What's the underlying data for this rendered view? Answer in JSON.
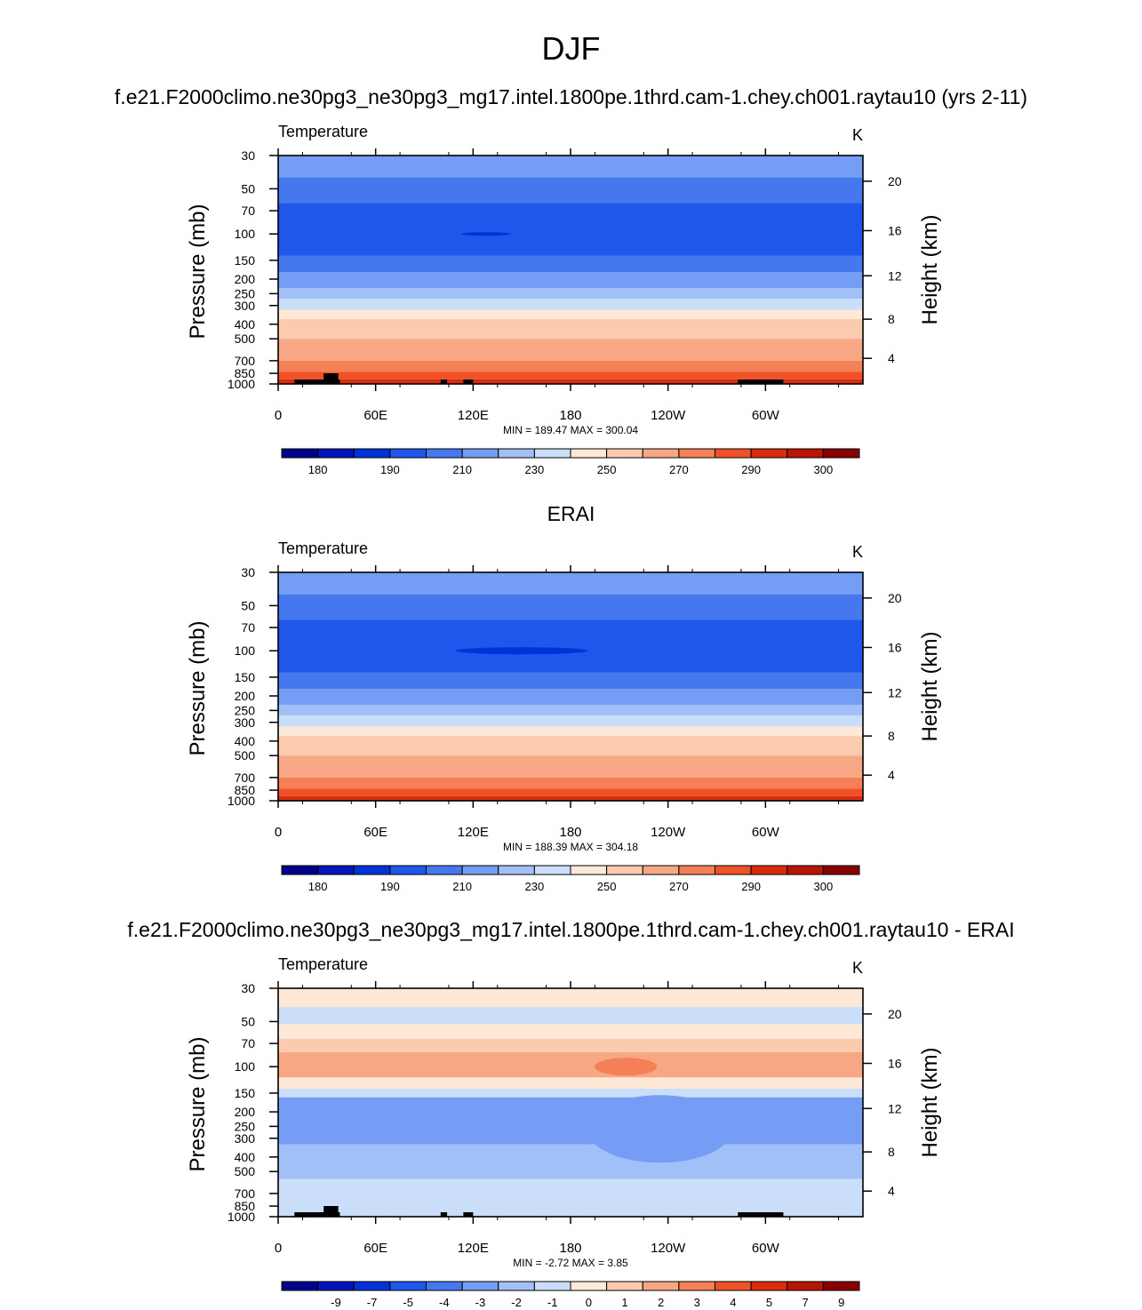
{
  "figure": {
    "title": "DJF",
    "panel_titles": [
      "f.e21.F2000climo.ne30pg3_ne30pg3_mg17.intel.1800pe.1thrd.cam-1.chey.ch001.raytau10 (yrs 2-11)",
      "ERAI",
      "f.e21.F2000climo.ne30pg3_ne30pg3_mg17.intel.1800pe.1thrd.cam-1.chey.ch001.raytau10 - ERAI"
    ]
  },
  "chart_data": [
    {
      "type": "heatmap",
      "variable": "Temperature",
      "units": "K",
      "ylabel": "Pressure (mb)",
      "ylabel_right": "Height (km)",
      "x_ticks": [
        "0",
        "60E",
        "120E",
        "180",
        "120W",
        "60W"
      ],
      "y_ticks": [
        30,
        50,
        70,
        100,
        150,
        200,
        250,
        300,
        400,
        500,
        700,
        850,
        1000
      ],
      "y_ticks_right": [
        20,
        16,
        12,
        8,
        4
      ],
      "y_scale": "log",
      "stats": "MIN = 189.47  MAX = 300.04",
      "colorbar_labels": [
        "180",
        "190",
        "210",
        "230",
        "250",
        "270",
        "290",
        "300"
      ],
      "layers": [
        {
          "p": 30,
          "value": 210
        },
        {
          "p": 42,
          "value": 200
        },
        {
          "p": 62,
          "value": 190
        },
        {
          "p": 140,
          "value": 200
        },
        {
          "p": 180,
          "value": 210
        },
        {
          "p": 230,
          "value": 220
        },
        {
          "p": 270,
          "value": 230
        },
        {
          "p": 320,
          "value": 240
        },
        {
          "p": 370,
          "value": 250
        },
        {
          "p": 430,
          "value": 255
        },
        {
          "p": 500,
          "value": 260
        },
        {
          "p": 600,
          "value": 265
        },
        {
          "p": 700,
          "value": 270
        },
        {
          "p": 830,
          "value": 280
        },
        {
          "p": 930,
          "value": 290
        },
        {
          "p": 990,
          "value": 300
        }
      ]
    },
    {
      "type": "heatmap",
      "variable": "Temperature",
      "units": "K",
      "ylabel": "Pressure (mb)",
      "ylabel_right": "Height (km)",
      "x_ticks": [
        "0",
        "60E",
        "120E",
        "180",
        "120W",
        "60W"
      ],
      "y_ticks": [
        30,
        50,
        70,
        100,
        150,
        200,
        250,
        300,
        400,
        500,
        700,
        850,
        1000
      ],
      "y_ticks_right": [
        20,
        16,
        12,
        8,
        4
      ],
      "y_scale": "log",
      "stats": "MIN = 188.39  MAX = 304.18",
      "colorbar_labels": [
        "180",
        "190",
        "210",
        "230",
        "250",
        "270",
        "290",
        "300"
      ],
      "layers": [
        {
          "p": 30,
          "value": 210
        },
        {
          "p": 42,
          "value": 200
        },
        {
          "p": 62,
          "value": 190
        },
        {
          "p": 140,
          "value": 200
        },
        {
          "p": 180,
          "value": 210
        },
        {
          "p": 230,
          "value": 220
        },
        {
          "p": 270,
          "value": 230
        },
        {
          "p": 320,
          "value": 240
        },
        {
          "p": 370,
          "value": 250
        },
        {
          "p": 430,
          "value": 255
        },
        {
          "p": 500,
          "value": 260
        },
        {
          "p": 600,
          "value": 265
        },
        {
          "p": 700,
          "value": 270
        },
        {
          "p": 830,
          "value": 280
        },
        {
          "p": 930,
          "value": 290
        },
        {
          "p": 985,
          "value": 300
        }
      ]
    },
    {
      "type": "heatmap",
      "variable": "Temperature",
      "units": "K",
      "ylabel": "Pressure (mb)",
      "ylabel_right": "Height (km)",
      "x_ticks": [
        "0",
        "60E",
        "120E",
        "180",
        "120W",
        "60W"
      ],
      "y_ticks": [
        30,
        50,
        70,
        100,
        150,
        200,
        250,
        300,
        400,
        500,
        700,
        850,
        1000
      ],
      "y_ticks_right": [
        20,
        16,
        12,
        8,
        4
      ],
      "y_scale": "log",
      "stats": "MIN =  -2.72  MAX =   3.85",
      "colorbar_labels": [
        "-9",
        "-7",
        "-5",
        "-4",
        "-3",
        "-2",
        "-1",
        "0",
        "1",
        "2",
        "3",
        "4",
        "5",
        "7",
        "9"
      ],
      "layers": [
        {
          "p": 30,
          "value": 0.5
        },
        {
          "p": 40,
          "value": -0.5
        },
        {
          "p": 52,
          "value": 0.5
        },
        {
          "p": 65,
          "value": 1.5
        },
        {
          "p": 80,
          "value": 2.5
        },
        {
          "p": 118,
          "value": 0.5
        },
        {
          "p": 140,
          "value": -0.5
        },
        {
          "p": 160,
          "value": -2.5
        },
        {
          "p": 330,
          "value": -1.5
        },
        {
          "p": 560,
          "value": -0.5
        },
        {
          "p": 830,
          "value": -0.5
        }
      ]
    }
  ],
  "palettes": {
    "temperature": [
      "#00008c",
      "#0016b6",
      "#0033d7",
      "#1f56ec",
      "#4578ef",
      "#759df5",
      "#a2c0f8",
      "#cadefa",
      "#fde9d6",
      "#fbcbb0",
      "#f8a785",
      "#f57f57",
      "#f05126",
      "#db2b0b",
      "#b91505",
      "#8a0000"
    ],
    "difference": [
      "#00008c",
      "#0016b6",
      "#0033d7",
      "#1f56ec",
      "#4578ef",
      "#759df5",
      "#a2c0f8",
      "#cadefa",
      "#fde9d6",
      "#fbcbb0",
      "#f8a785",
      "#f57f57",
      "#f05126",
      "#db2b0b",
      "#b91505",
      "#8a0000"
    ]
  }
}
